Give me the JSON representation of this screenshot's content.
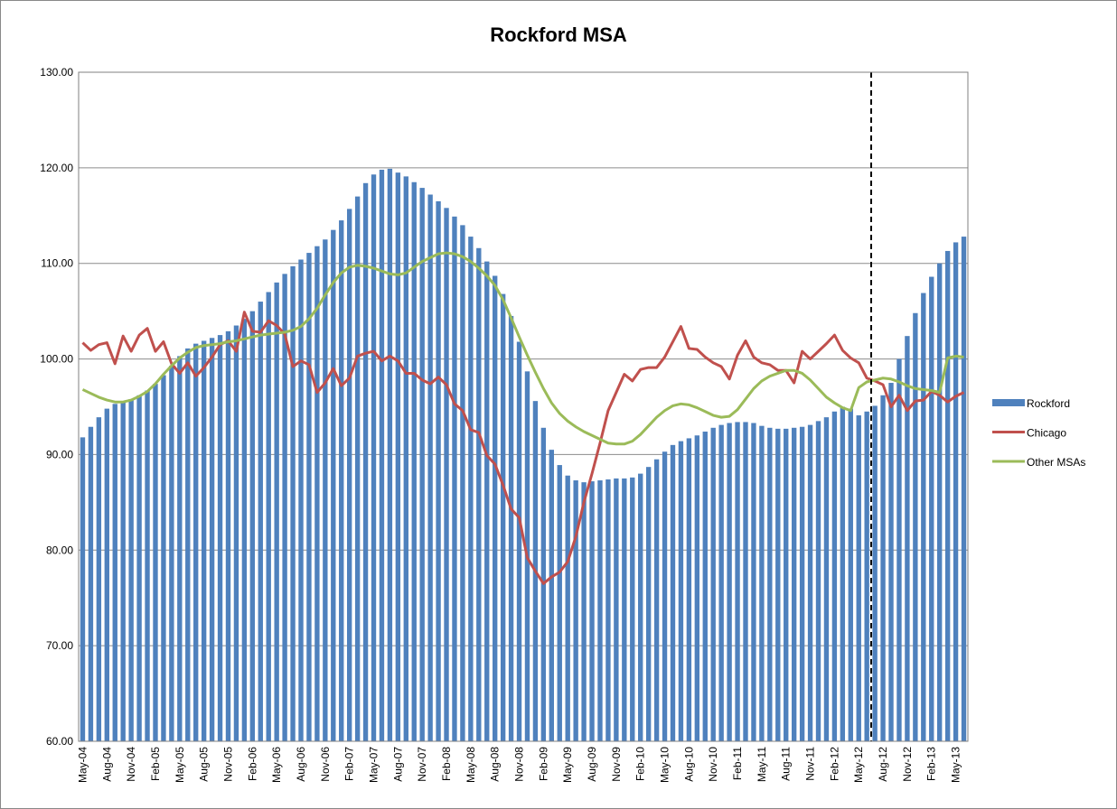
{
  "chart_data": {
    "type": "bar",
    "title": "Rockford MSA",
    "categories": [
      "May-04",
      null,
      null,
      "Aug-04",
      null,
      null,
      "Nov-04",
      null,
      null,
      "Feb-05",
      null,
      null,
      "May-05",
      null,
      null,
      "Aug-05",
      null,
      null,
      "Nov-05",
      null,
      null,
      "Feb-06",
      null,
      null,
      "May-06",
      null,
      null,
      "Aug-06",
      null,
      null,
      "Nov-06",
      null,
      null,
      "Feb-07",
      null,
      null,
      "May-07",
      null,
      null,
      "Aug-07",
      null,
      null,
      "Nov-07",
      null,
      null,
      "Feb-08",
      null,
      null,
      "May-08",
      null,
      null,
      "Aug-08",
      null,
      null,
      "Nov-08",
      null,
      null,
      "Feb-09",
      null,
      null,
      "May-09",
      null,
      null,
      "Aug-09",
      null,
      null,
      "Nov-09",
      null,
      null,
      "Feb-10",
      null,
      null,
      "May-10",
      null,
      null,
      "Aug-10",
      null,
      null,
      "Nov-10",
      null,
      null,
      "Feb-11",
      null,
      null,
      "May-11",
      null,
      null,
      "Aug-11",
      null,
      null,
      "Nov-11",
      null,
      null,
      "Feb-12",
      null,
      null,
      "May-12",
      null,
      null,
      "Aug-12",
      null,
      null,
      "Nov-12",
      null,
      null,
      "Feb-13",
      null,
      null,
      "May-13",
      null
    ],
    "series": [
      {
        "name": "Rockford",
        "type": "bar",
        "color": "#4f81bd",
        "values": [
          91.8,
          92.9,
          93.9,
          94.8,
          95.3,
          95.6,
          95.8,
          96.2,
          96.7,
          97.4,
          98.3,
          99.3,
          100.3,
          101.1,
          101.6,
          101.9,
          102.2,
          102.5,
          102.9,
          103.5,
          104.2,
          105.0,
          106.0,
          107.0,
          108.0,
          108.9,
          109.7,
          110.4,
          111.1,
          111.8,
          112.5,
          113.5,
          114.5,
          115.7,
          117.0,
          118.4,
          119.3,
          119.8,
          119.9,
          119.5,
          119.1,
          118.5,
          117.9,
          117.2,
          116.5,
          115.8,
          114.9,
          114.0,
          112.8,
          111.6,
          110.2,
          108.7,
          106.8,
          104.5,
          101.8,
          98.7,
          95.6,
          92.8,
          90.5,
          88.9,
          87.8,
          87.3,
          87.1,
          87.2,
          87.3,
          87.4,
          87.5,
          87.5,
          87.6,
          88.0,
          88.7,
          89.5,
          90.3,
          91.0,
          91.4,
          91.7,
          92.0,
          92.4,
          92.8,
          93.1,
          93.3,
          93.4,
          93.4,
          93.3,
          93.0,
          92.8,
          92.7,
          92.7,
          92.8,
          92.9,
          93.1,
          93.5,
          93.9,
          94.5,
          95.0,
          94.8,
          94.1,
          94.5,
          95.1,
          96.2,
          97.5,
          100.0,
          102.4,
          104.8,
          106.9,
          108.6,
          110.0,
          111.3,
          112.2,
          112.8
        ]
      },
      {
        "name": "Chicago",
        "type": "line",
        "color": "#c0504d",
        "values": [
          101.7,
          100.9,
          101.5,
          101.7,
          99.5,
          102.4,
          100.8,
          102.5,
          103.2,
          100.8,
          101.8,
          99.5,
          98.5,
          99.6,
          98.2,
          99.1,
          100.2,
          101.5,
          101.9,
          100.8,
          104.9,
          102.9,
          102.8,
          104.0,
          103.5,
          102.6,
          99.2,
          99.8,
          99.4,
          96.5,
          97.5,
          99.0,
          97.2,
          98.0,
          100.3,
          100.6,
          100.8,
          99.8,
          100.3,
          99.8,
          98.5,
          98.5,
          97.8,
          97.4,
          98.1,
          97.3,
          95.3,
          94.6,
          92.6,
          92.3,
          89.9,
          89.0,
          86.8,
          84.3,
          83.4,
          79.2,
          77.8,
          76.5,
          77.2,
          77.7,
          78.8,
          81.4,
          85.0,
          88.0,
          91.2,
          94.6,
          96.5,
          98.4,
          97.7,
          98.9,
          99.1,
          99.1,
          100.2,
          101.8,
          103.4,
          101.1,
          101.0,
          100.2,
          99.6,
          99.2,
          97.9,
          100.4,
          101.9,
          100.2,
          99.6,
          99.4,
          98.8,
          98.8,
          97.5,
          100.8,
          100.0,
          100.8,
          101.6,
          102.5,
          100.9,
          100.1,
          99.6,
          98.0,
          97.7,
          97.3,
          95.0,
          96.2,
          94.6,
          95.6,
          95.7,
          96.6,
          96.2,
          95.5,
          96.1,
          96.5
        ]
      },
      {
        "name": "Other MSAs",
        "type": "line",
        "color": "#9bbb59",
        "values": [
          96.8,
          96.4,
          96.0,
          95.7,
          95.5,
          95.5,
          95.7,
          96.1,
          96.6,
          97.4,
          98.4,
          99.3,
          100.1,
          100.7,
          101.2,
          101.4,
          101.5,
          101.6,
          101.8,
          101.9,
          102.1,
          102.3,
          102.5,
          102.6,
          102.7,
          102.8,
          103.0,
          103.4,
          104.2,
          105.3,
          106.7,
          108.0,
          109.0,
          109.6,
          109.8,
          109.7,
          109.5,
          109.2,
          108.9,
          108.8,
          109.0,
          109.6,
          110.2,
          110.6,
          111.0,
          111.1,
          111.0,
          110.7,
          110.2,
          109.5,
          108.7,
          107.7,
          106.2,
          104.3,
          102.3,
          100.4,
          98.6,
          96.9,
          95.4,
          94.3,
          93.5,
          92.9,
          92.4,
          92.0,
          91.6,
          91.2,
          91.1,
          91.1,
          91.4,
          92.1,
          93.0,
          93.9,
          94.6,
          95.1,
          95.3,
          95.2,
          94.9,
          94.5,
          94.1,
          93.9,
          94.0,
          94.7,
          95.8,
          96.9,
          97.7,
          98.2,
          98.5,
          98.8,
          98.8,
          98.5,
          97.8,
          96.9,
          96.0,
          95.4,
          94.9,
          94.6,
          97.0,
          97.6,
          97.8,
          98.0,
          97.9,
          97.6,
          97.2,
          96.9,
          96.8,
          96.7,
          96.5,
          100.1,
          100.3,
          100.2
        ]
      }
    ],
    "ylim": [
      60,
      130
    ],
    "yticks": [
      {
        "value": 60,
        "label": "60.00"
      },
      {
        "value": 70,
        "label": "70.00"
      },
      {
        "value": 80,
        "label": "80.00"
      },
      {
        "value": 90,
        "label": "90.00"
      },
      {
        "value": 100,
        "label": "100.00"
      },
      {
        "value": 110,
        "label": "110.00"
      },
      {
        "value": 120,
        "label": "120.00"
      },
      {
        "value": 130,
        "label": "130.00"
      }
    ],
    "grid": true,
    "legend": "right"
  }
}
